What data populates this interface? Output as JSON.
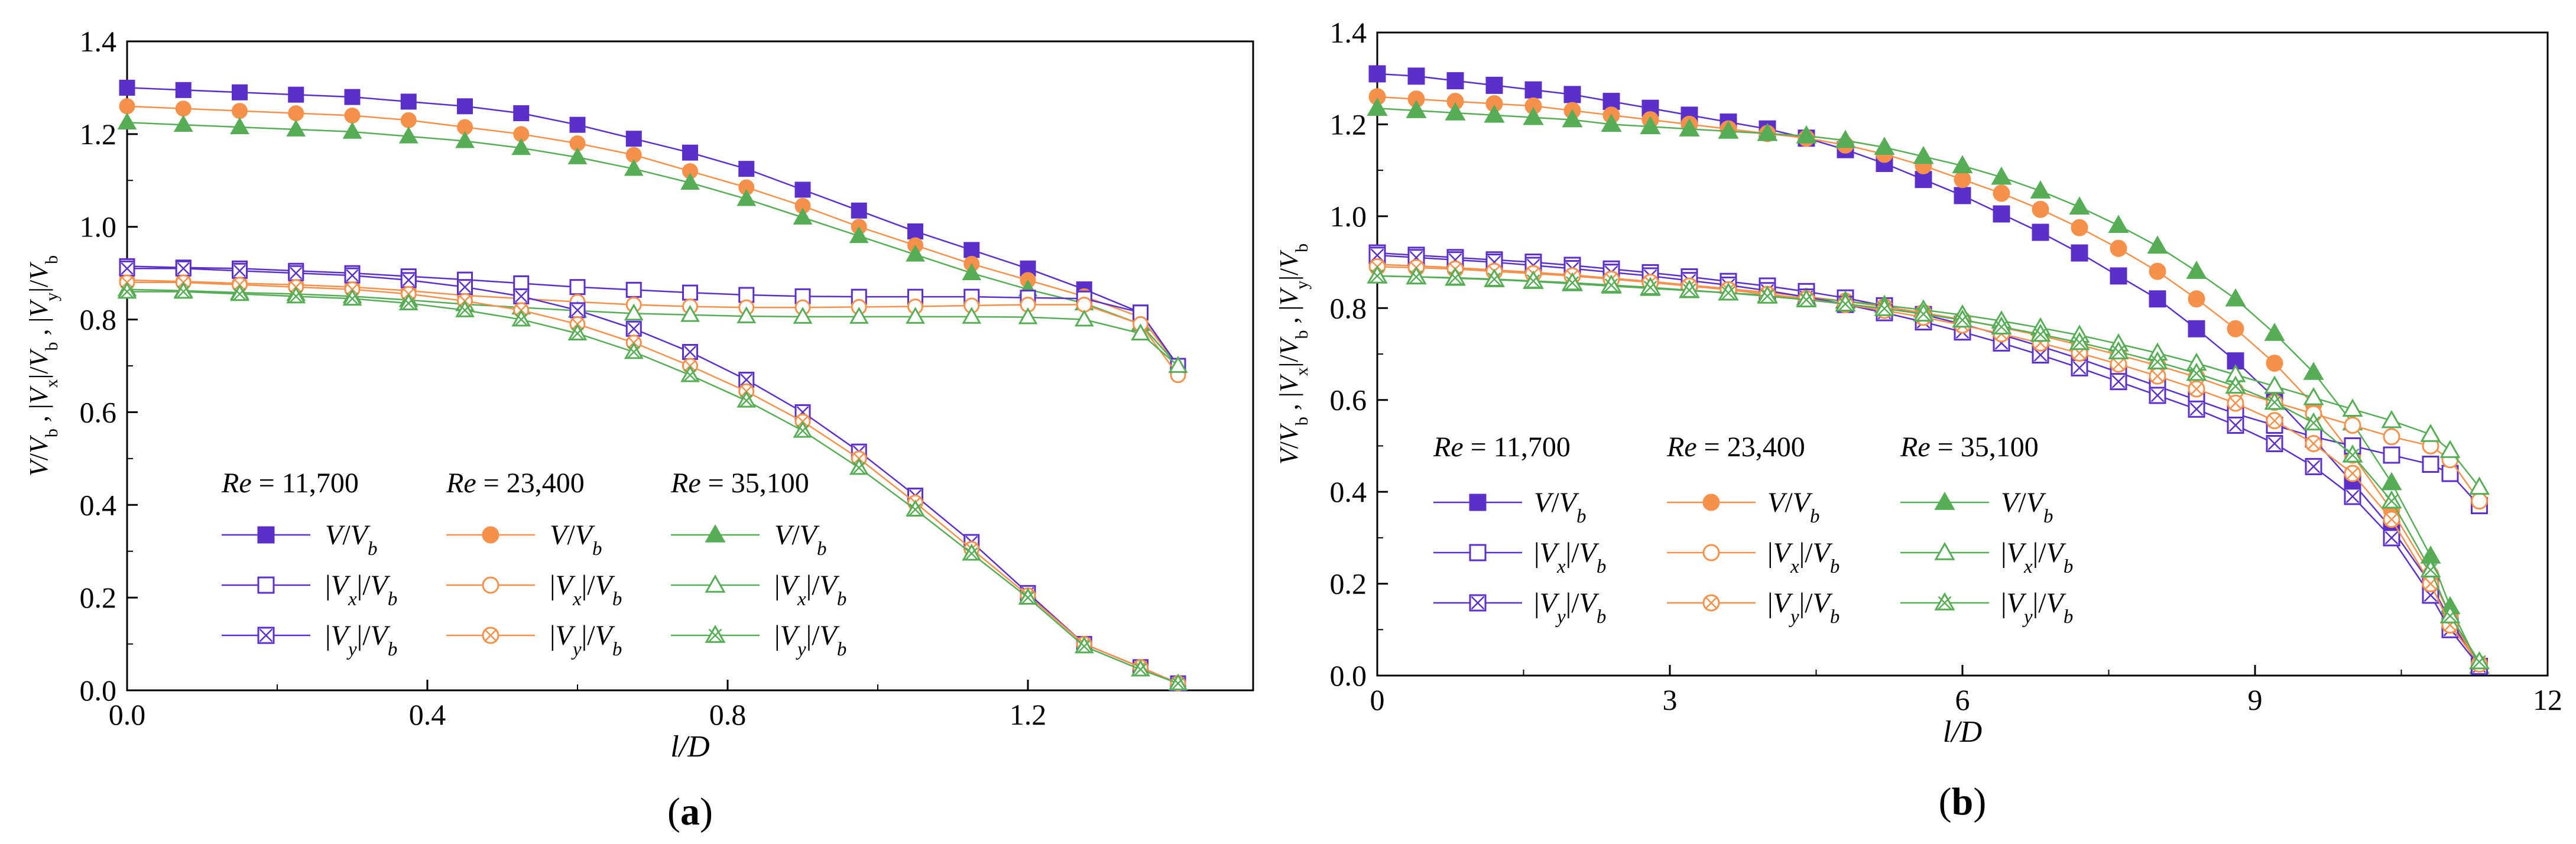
{
  "panels": [
    {
      "id": "a",
      "caption_letter": "a",
      "caption_left": "(",
      "caption_right": ")",
      "xlabel": "l/D",
      "ylabel": "V/V_b, |V_x|/V_b, |V_y|/V_b",
      "xlim": [
        0,
        1.5
      ],
      "ylim": [
        0,
        1.4
      ],
      "xticks": [
        0.0,
        0.4,
        0.8,
        1.2
      ],
      "xtick_labels": [
        "0.0",
        "0.4",
        "0.8",
        "1.2"
      ],
      "yticks": [
        0.0,
        0.2,
        0.4,
        0.6,
        0.8,
        1.0,
        1.2,
        1.4
      ],
      "ytick_labels": [
        "0.0",
        "0.2",
        "0.4",
        "0.6",
        "0.8",
        "1.0",
        "1.2",
        "1.4"
      ]
    },
    {
      "id": "b",
      "caption_letter": "b",
      "caption_left": "(",
      "caption_right": ")",
      "xlabel": "l/D",
      "ylabel": "V/V_b, |V_x|/V_b, |V_y|/V_b",
      "xlim": [
        0,
        12
      ],
      "ylim": [
        0,
        1.4
      ],
      "xticks": [
        0,
        3,
        6,
        9,
        12
      ],
      "xtick_labels": [
        "0",
        "3",
        "6",
        "9",
        "12"
      ],
      "yticks": [
        0.0,
        0.2,
        0.4,
        0.6,
        0.8,
        1.0,
        1.2,
        1.4
      ],
      "ytick_labels": [
        "0.0",
        "0.2",
        "0.4",
        "0.6",
        "0.8",
        "1.0",
        "1.2",
        "1.4"
      ]
    }
  ],
  "legend": {
    "columns": [
      {
        "re_label": "Re",
        "re_value": "= 11,700",
        "color": "#5b2fc9"
      },
      {
        "re_label": "Re",
        "re_value": "= 23,400",
        "color": "#f5914a"
      },
      {
        "re_label": "Re",
        "re_value": "= 35,100",
        "color": "#56ad56"
      }
    ],
    "rows": [
      {
        "label": "V/V_b",
        "marker": "filled"
      },
      {
        "label": "|V_x|/V_b",
        "marker": "hollow"
      },
      {
        "label": "|V_y|/V_b",
        "marker": "crossed"
      }
    ]
  },
  "chart_data": [
    {
      "type": "line",
      "title": "(a)",
      "xlabel": "l/D",
      "ylabel": "V/V_b, |V_x|/V_b, |V_y|/V_b",
      "xlim": [
        0,
        1.5
      ],
      "ylim": [
        0,
        1.4
      ],
      "x": [
        0,
        0.075,
        0.15,
        0.225,
        0.3,
        0.375,
        0.45,
        0.525,
        0.6,
        0.675,
        0.75,
        0.825,
        0.9,
        0.975,
        1.05,
        1.125,
        1.2,
        1.275,
        1.35,
        1.4
      ],
      "series": [
        {
          "name": "V/V_b, Re = 11,700",
          "color": "#5b2fc9",
          "marker": "square-filled",
          "values": [
            1.3,
            1.295,
            1.29,
            1.285,
            1.28,
            1.27,
            1.26,
            1.245,
            1.22,
            1.19,
            1.16,
            1.125,
            1.08,
            1.035,
            0.99,
            0.95,
            0.91,
            0.865,
            0.815,
            0.7
          ]
        },
        {
          "name": "V/V_b, Re = 23,400",
          "color": "#f5914a",
          "marker": "circle-filled",
          "values": [
            1.26,
            1.255,
            1.25,
            1.245,
            1.24,
            1.23,
            1.215,
            1.2,
            1.18,
            1.155,
            1.12,
            1.085,
            1.045,
            1.0,
            0.96,
            0.92,
            0.885,
            0.85,
            0.805,
            0.7
          ]
        },
        {
          "name": "V/V_b, Re = 35,100",
          "color": "#56ad56",
          "marker": "triangle-filled",
          "values": [
            1.225,
            1.22,
            1.215,
            1.21,
            1.205,
            1.195,
            1.185,
            1.17,
            1.15,
            1.125,
            1.095,
            1.06,
            1.02,
            0.98,
            0.94,
            0.9,
            0.865,
            0.835,
            0.79,
            0.7
          ]
        },
        {
          "name": "|V_x|/V_b, Re = 11,700",
          "color": "#5b2fc9",
          "marker": "square-hollow",
          "values": [
            0.915,
            0.912,
            0.91,
            0.905,
            0.9,
            0.893,
            0.886,
            0.878,
            0.87,
            0.864,
            0.858,
            0.853,
            0.85,
            0.849,
            0.849,
            0.849,
            0.847,
            0.845,
            0.815,
            0.7
          ]
        },
        {
          "name": "|V_x|/V_b, Re = 23,400",
          "color": "#f5914a",
          "marker": "circle-hollow",
          "values": [
            0.885,
            0.882,
            0.878,
            0.875,
            0.87,
            0.862,
            0.852,
            0.845,
            0.838,
            0.832,
            0.828,
            0.826,
            0.826,
            0.827,
            0.828,
            0.83,
            0.832,
            0.832,
            0.79,
            0.68
          ]
        },
        {
          "name": "|V_x|/V_b, Re = 35,100",
          "color": "#56ad56",
          "marker": "triangle-hollow",
          "values": [
            0.865,
            0.862,
            0.858,
            0.855,
            0.85,
            0.842,
            0.833,
            0.826,
            0.819,
            0.813,
            0.81,
            0.807,
            0.806,
            0.806,
            0.806,
            0.806,
            0.805,
            0.8,
            0.77,
            0.7
          ]
        },
        {
          "name": "|V_y|/V_b, Re = 11,700",
          "color": "#5b2fc9",
          "marker": "square-crossed",
          "values": [
            0.91,
            0.91,
            0.905,
            0.9,
            0.895,
            0.885,
            0.87,
            0.85,
            0.82,
            0.78,
            0.73,
            0.67,
            0.6,
            0.515,
            0.42,
            0.32,
            0.21,
            0.1,
            0.05,
            0.015
          ]
        },
        {
          "name": "|V_y|/V_b, Re = 23,400",
          "color": "#f5914a",
          "marker": "circle-crossed",
          "values": [
            0.88,
            0.88,
            0.875,
            0.87,
            0.865,
            0.855,
            0.84,
            0.82,
            0.79,
            0.75,
            0.7,
            0.645,
            0.58,
            0.5,
            0.405,
            0.305,
            0.205,
            0.1,
            0.05,
            0.015
          ]
        },
        {
          "name": "|V_y|/V_b, Re = 35,100",
          "color": "#56ad56",
          "marker": "triangle-crossed",
          "values": [
            0.86,
            0.86,
            0.855,
            0.85,
            0.845,
            0.835,
            0.82,
            0.8,
            0.77,
            0.73,
            0.68,
            0.625,
            0.56,
            0.48,
            0.39,
            0.295,
            0.2,
            0.095,
            0.045,
            0.015
          ]
        }
      ]
    },
    {
      "type": "line",
      "title": "(b)",
      "xlabel": "l/D",
      "ylabel": "V/V_b, |V_x|/V_b, |V_y|/V_b",
      "xlim": [
        0,
        12
      ],
      "ylim": [
        0,
        1.4
      ],
      "x": [
        0,
        0.4,
        0.8,
        1.2,
        1.6,
        2.0,
        2.4,
        2.8,
        3.2,
        3.6,
        4.0,
        4.4,
        4.8,
        5.2,
        5.6,
        6.0,
        6.4,
        6.8,
        7.2,
        7.6,
        8.0,
        8.4,
        8.8,
        9.2,
        9.6,
        10.0,
        10.4,
        10.8,
        11.0,
        11.3
      ],
      "series": [
        {
          "name": "V/V_b, Re = 11,700",
          "color": "#5b2fc9",
          "marker": "square-filled",
          "values": [
            1.31,
            1.305,
            1.295,
            1.285,
            1.275,
            1.265,
            1.25,
            1.235,
            1.22,
            1.205,
            1.19,
            1.17,
            1.145,
            1.115,
            1.08,
            1.045,
            1.005,
            0.965,
            0.92,
            0.87,
            0.82,
            0.755,
            0.685,
            0.605,
            0.515,
            0.42,
            0.32,
            0.2,
            0.12,
            0.02
          ]
        },
        {
          "name": "V/V_b, Re = 23,400",
          "color": "#f5914a",
          "marker": "circle-filled",
          "values": [
            1.26,
            1.255,
            1.25,
            1.245,
            1.24,
            1.23,
            1.22,
            1.21,
            1.2,
            1.19,
            1.18,
            1.17,
            1.155,
            1.135,
            1.11,
            1.08,
            1.05,
            1.015,
            0.975,
            0.93,
            0.88,
            0.82,
            0.755,
            0.68,
            0.59,
            0.48,
            0.36,
            0.22,
            0.13,
            0.02
          ]
        },
        {
          "name": "V/V_b, Re = 35,100",
          "color": "#56ad56",
          "marker": "triangle-filled",
          "values": [
            1.235,
            1.23,
            1.225,
            1.22,
            1.215,
            1.21,
            1.2,
            1.195,
            1.19,
            1.185,
            1.18,
            1.175,
            1.165,
            1.15,
            1.13,
            1.11,
            1.085,
            1.055,
            1.02,
            0.98,
            0.935,
            0.88,
            0.82,
            0.745,
            0.66,
            0.55,
            0.42,
            0.26,
            0.15,
            0.02
          ]
        },
        {
          "name": "|V_x|/V_b, Re = 11,700",
          "color": "#5b2fc9",
          "marker": "square-hollow",
          "values": [
            0.92,
            0.915,
            0.91,
            0.905,
            0.9,
            0.893,
            0.885,
            0.877,
            0.868,
            0.858,
            0.848,
            0.836,
            0.822,
            0.805,
            0.786,
            0.765,
            0.742,
            0.717,
            0.69,
            0.66,
            0.63,
            0.6,
            0.57,
            0.545,
            0.52,
            0.5,
            0.48,
            0.46,
            0.44,
            0.37
          ]
        },
        {
          "name": "|V_x|/V_b, Re = 23,400",
          "color": "#f5914a",
          "marker": "circle-hollow",
          "values": [
            0.895,
            0.892,
            0.888,
            0.883,
            0.878,
            0.872,
            0.865,
            0.858,
            0.85,
            0.842,
            0.834,
            0.825,
            0.815,
            0.803,
            0.79,
            0.775,
            0.758,
            0.74,
            0.72,
            0.698,
            0.675,
            0.65,
            0.62,
            0.595,
            0.57,
            0.545,
            0.52,
            0.5,
            0.47,
            0.38
          ]
        },
        {
          "name": "|V_x|/V_b, Re = 35,100",
          "color": "#56ad56",
          "marker": "triangle-hollow",
          "values": [
            0.87,
            0.868,
            0.865,
            0.862,
            0.858,
            0.853,
            0.848,
            0.843,
            0.838,
            0.833,
            0.828,
            0.822,
            0.815,
            0.806,
            0.796,
            0.785,
            0.772,
            0.757,
            0.741,
            0.722,
            0.702,
            0.68,
            0.655,
            0.63,
            0.605,
            0.58,
            0.555,
            0.525,
            0.49,
            0.41
          ]
        },
        {
          "name": "|V_y|/V_b, Re = 11,700",
          "color": "#5b2fc9",
          "marker": "square-crossed",
          "values": [
            0.915,
            0.91,
            0.905,
            0.9,
            0.893,
            0.886,
            0.878,
            0.87,
            0.86,
            0.85,
            0.838,
            0.824,
            0.808,
            0.79,
            0.77,
            0.748,
            0.724,
            0.698,
            0.67,
            0.64,
            0.61,
            0.58,
            0.545,
            0.505,
            0.455,
            0.39,
            0.3,
            0.175,
            0.1,
            0.02
          ]
        },
        {
          "name": "|V_y|/V_b, Re = 23,400",
          "color": "#f5914a",
          "marker": "circle-crossed",
          "values": [
            0.89,
            0.888,
            0.885,
            0.88,
            0.875,
            0.87,
            0.863,
            0.856,
            0.848,
            0.84,
            0.83,
            0.82,
            0.808,
            0.795,
            0.78,
            0.763,
            0.744,
            0.724,
            0.702,
            0.678,
            0.652,
            0.624,
            0.593,
            0.555,
            0.505,
            0.44,
            0.34,
            0.2,
            0.11,
            0.025
          ]
        },
        {
          "name": "|V_y|/V_b, Re = 35,100",
          "color": "#56ad56",
          "marker": "triangle-crossed",
          "values": [
            0.87,
            0.868,
            0.866,
            0.863,
            0.859,
            0.855,
            0.85,
            0.845,
            0.839,
            0.833,
            0.826,
            0.818,
            0.809,
            0.799,
            0.787,
            0.774,
            0.759,
            0.743,
            0.725,
            0.705,
            0.683,
            0.658,
            0.63,
            0.595,
            0.55,
            0.48,
            0.38,
            0.23,
            0.13,
            0.03
          ]
        }
      ]
    }
  ]
}
